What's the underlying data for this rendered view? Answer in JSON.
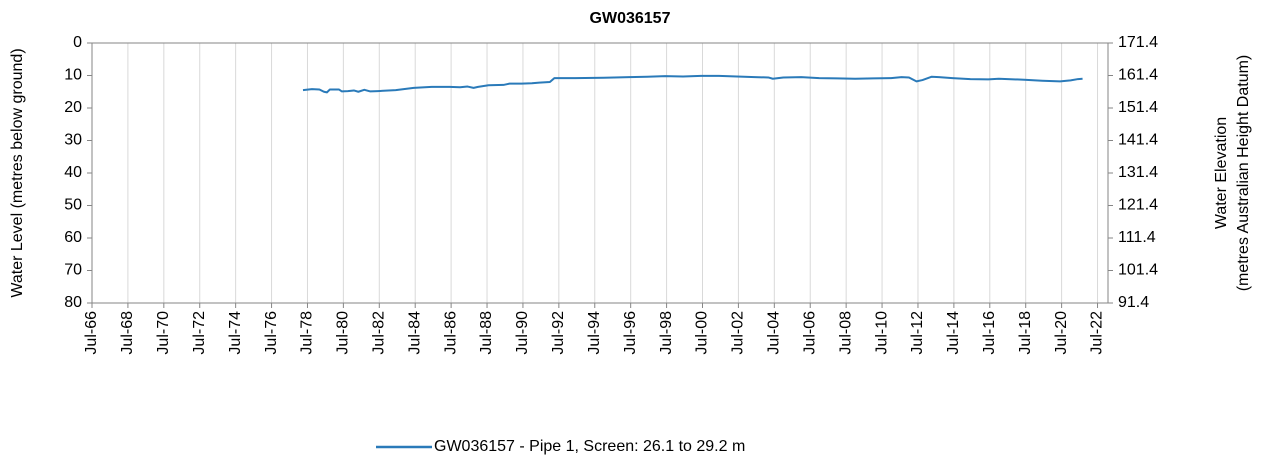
{
  "chart_data": {
    "type": "line",
    "title": "GW036157",
    "y_label": "Water Level (metres below ground)",
    "y2_label": [
      "Water Elevation",
      "(metres Australian Height Datum)"
    ],
    "xlim": [
      "1966-07",
      "2023-02"
    ],
    "xticks": [
      {
        "value": "1966-07",
        "label": "Jul-66"
      },
      {
        "value": "1968-07",
        "label": "Jul-68"
      },
      {
        "value": "1970-07",
        "label": "Jul-70"
      },
      {
        "value": "1972-07",
        "label": "Jul-72"
      },
      {
        "value": "1974-07",
        "label": "Jul-74"
      },
      {
        "value": "1976-07",
        "label": "Jul-76"
      },
      {
        "value": "1978-07",
        "label": "Jul-78"
      },
      {
        "value": "1980-07",
        "label": "Jul-80"
      },
      {
        "value": "1982-07",
        "label": "Jul-82"
      },
      {
        "value": "1984-07",
        "label": "Jul-84"
      },
      {
        "value": "1986-07",
        "label": "Jul-86"
      },
      {
        "value": "1988-07",
        "label": "Jul-88"
      },
      {
        "value": "1990-07",
        "label": "Jul-90"
      },
      {
        "value": "1992-07",
        "label": "Jul-92"
      },
      {
        "value": "1994-07",
        "label": "Jul-94"
      },
      {
        "value": "1996-07",
        "label": "Jul-96"
      },
      {
        "value": "1998-07",
        "label": "Jul-98"
      },
      {
        "value": "2000-07",
        "label": "Jul-00"
      },
      {
        "value": "2002-07",
        "label": "Jul-02"
      },
      {
        "value": "2004-07",
        "label": "Jul-04"
      },
      {
        "value": "2006-07",
        "label": "Jul-06"
      },
      {
        "value": "2008-07",
        "label": "Jul-08"
      },
      {
        "value": "2010-07",
        "label": "Jul-10"
      },
      {
        "value": "2012-07",
        "label": "Jul-12"
      },
      {
        "value": "2014-07",
        "label": "Jul-14"
      },
      {
        "value": "2016-07",
        "label": "Jul-16"
      },
      {
        "value": "2018-07",
        "label": "Jul-18"
      },
      {
        "value": "2020-07",
        "label": "Jul-20"
      },
      {
        "value": "2022-07",
        "label": "Jul-22"
      }
    ],
    "ylim": [
      80,
      0
    ],
    "yticks": [
      0,
      10,
      20,
      30,
      40,
      50,
      60,
      70,
      80
    ],
    "y2lim": [
      91.4,
      171.4
    ],
    "y2ticks": [
      171.4,
      161.4,
      151.4,
      141.4,
      131.4,
      121.4,
      111.4,
      101.4,
      91.4
    ],
    "grid": "x",
    "legend": "bottom",
    "x": [
      "1978-04",
      "1978-10",
      "1979-03",
      "1979-06",
      "1979-08",
      "1979-10",
      "1980-04",
      "1980-06",
      "1980-10",
      "1981-02",
      "1981-05",
      "1981-09",
      "1982-01",
      "1982-06",
      "1983-06",
      "1984-06",
      "1985-06",
      "1986-06",
      "1987-01",
      "1987-06",
      "1987-10",
      "1988-01",
      "1988-08",
      "1989-06",
      "1989-10",
      "1990-06",
      "1991-01",
      "1991-06",
      "1992-01",
      "1992-04",
      "1993-06",
      "1995-01",
      "1995-08",
      "1996-06",
      "1997-06",
      "1998-06",
      "1999-06",
      "2000-06",
      "2001-06",
      "2002-06",
      "2003-06",
      "2004-03",
      "2004-06",
      "2005-01",
      "2006-01",
      "2007-01",
      "2008-01",
      "2009-01",
      "2010-01",
      "2011-01",
      "2011-08",
      "2012-01",
      "2012-06",
      "2012-10",
      "2013-04",
      "2013-09",
      "2014-06",
      "2015-06",
      "2016-06",
      "2017-01",
      "2018-06",
      "2019-06",
      "2020-06",
      "2021-01",
      "2021-06",
      "2021-09"
    ],
    "series": [
      {
        "name": "GW036157 - Pipe 1, Screen: 26.1 to 29.2 m",
        "color": "#2a7ab9",
        "values": [
          14.5,
          14.2,
          14.3,
          15.0,
          15.2,
          14.3,
          14.3,
          14.9,
          14.8,
          14.6,
          15.0,
          14.4,
          14.9,
          14.8,
          14.5,
          13.8,
          13.5,
          13.5,
          13.6,
          13.4,
          13.8,
          13.5,
          13.0,
          12.9,
          12.5,
          12.5,
          12.4,
          12.2,
          12.0,
          10.8,
          10.8,
          10.7,
          10.6,
          10.5,
          10.4,
          10.2,
          10.3,
          10.1,
          10.1,
          10.3,
          10.5,
          10.6,
          11.0,
          10.6,
          10.5,
          10.8,
          10.9,
          11.0,
          10.9,
          10.8,
          10.5,
          10.6,
          11.8,
          11.4,
          10.4,
          10.5,
          10.8,
          11.1,
          11.2,
          11.0,
          11.3,
          11.6,
          11.8,
          11.5,
          11.1,
          11.0
        ]
      }
    ]
  }
}
